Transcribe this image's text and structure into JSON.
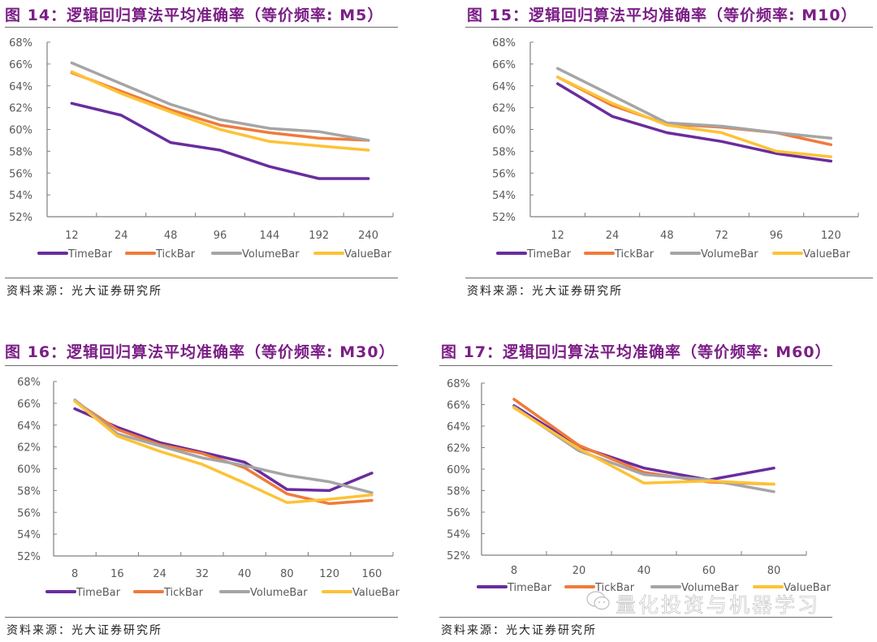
{
  "source_label": "资料来源：",
  "source_name": "光大证券研究所",
  "watermark": "量化投资与机器学习",
  "colors": {
    "TimeBar": "#6a2c9e",
    "TickBar": "#ef7b3a",
    "VolumeBar": "#a5a5a5",
    "ValueBar": "#fdc236",
    "title": "#7b1f86",
    "axis": "#7f7f7f",
    "tick_text": "#595959"
  },
  "chart_data": [
    {
      "id": "fig14",
      "type": "line",
      "title": "图 14：逻辑回归算法平均准确率（等价频率: M5）",
      "xlabel": "",
      "ylabel": "",
      "categories": [
        "12",
        "24",
        "48",
        "96",
        "144",
        "192",
        "240"
      ],
      "ylim": [
        52,
        68
      ],
      "yticks": [
        "52%",
        "54%",
        "56%",
        "58%",
        "60%",
        "62%",
        "64%",
        "66%",
        "68%"
      ],
      "grid": false,
      "legend": "bottom",
      "series": [
        {
          "name": "TimeBar",
          "values": [
            62.4,
            61.3,
            58.8,
            58.1,
            56.6,
            55.5,
            55.5
          ]
        },
        {
          "name": "TickBar",
          "values": [
            65.2,
            63.5,
            61.8,
            60.4,
            59.7,
            59.2,
            59.0
          ]
        },
        {
          "name": "VolumeBar",
          "values": [
            66.1,
            64.2,
            62.3,
            60.9,
            60.1,
            59.8,
            59.0
          ]
        },
        {
          "name": "ValueBar",
          "values": [
            65.3,
            63.3,
            61.6,
            60.0,
            58.9,
            58.5,
            58.1
          ]
        }
      ]
    },
    {
      "id": "fig15",
      "type": "line",
      "title": "图 15：逻辑回归算法平均准确率（等价频率: M10）",
      "xlabel": "",
      "ylabel": "",
      "categories": [
        "12",
        "24",
        "48",
        "72",
        "96",
        "120"
      ],
      "ylim": [
        52,
        68
      ],
      "yticks": [
        "52%",
        "54%",
        "56%",
        "58%",
        "60%",
        "62%",
        "64%",
        "66%",
        "68%"
      ],
      "grid": false,
      "legend": "bottom",
      "series": [
        {
          "name": "TimeBar",
          "values": [
            64.2,
            61.2,
            59.7,
            58.9,
            57.8,
            57.1
          ]
        },
        {
          "name": "TickBar",
          "values": [
            64.8,
            62.2,
            60.5,
            60.2,
            59.7,
            58.6
          ]
        },
        {
          "name": "VolumeBar",
          "values": [
            65.6,
            63.1,
            60.6,
            60.3,
            59.7,
            59.2
          ]
        },
        {
          "name": "ValueBar",
          "values": [
            64.8,
            62.4,
            60.4,
            59.7,
            58.0,
            57.5
          ]
        }
      ]
    },
    {
      "id": "fig16",
      "type": "line",
      "title": "图 16：逻辑回归算法平均准确率（等价频率: M30）",
      "xlabel": "",
      "ylabel": "",
      "categories": [
        "8",
        "16",
        "24",
        "32",
        "40",
        "80",
        "120",
        "160"
      ],
      "ylim": [
        52,
        68
      ],
      "yticks": [
        "52%",
        "54%",
        "56%",
        "58%",
        "60%",
        "62%",
        "64%",
        "66%",
        "68%"
      ],
      "grid": false,
      "legend": "bottom",
      "series": [
        {
          "name": "TimeBar",
          "values": [
            65.5,
            63.8,
            62.4,
            61.5,
            60.6,
            58.1,
            58.0,
            59.6
          ]
        },
        {
          "name": "TickBar",
          "values": [
            66.2,
            63.6,
            62.2,
            61.4,
            60.1,
            57.7,
            56.8,
            57.1
          ]
        },
        {
          "name": "VolumeBar",
          "values": [
            66.3,
            63.2,
            62.1,
            61.0,
            60.3,
            59.4,
            58.8,
            57.8
          ]
        },
        {
          "name": "ValueBar",
          "values": [
            66.2,
            63.0,
            61.6,
            60.4,
            58.7,
            56.9,
            57.2,
            57.6
          ]
        }
      ]
    },
    {
      "id": "fig17",
      "type": "line",
      "title": "图 17：逻辑回归算法平均准确率（等价频率: M60）",
      "xlabel": "",
      "ylabel": "",
      "categories": [
        "8",
        "20",
        "40",
        "60",
        "80"
      ],
      "ylim": [
        52,
        68
      ],
      "yticks": [
        "52%",
        "54%",
        "56%",
        "58%",
        "60%",
        "62%",
        "64%",
        "66%",
        "68%"
      ],
      "grid": false,
      "legend": "bottom",
      "series": [
        {
          "name": "TimeBar",
          "values": [
            65.9,
            62.1,
            60.1,
            59.0,
            60.1
          ]
        },
        {
          "name": "TickBar",
          "values": [
            66.5,
            62.2,
            59.7,
            58.8,
            58.6
          ]
        },
        {
          "name": "VolumeBar",
          "values": [
            65.8,
            61.7,
            59.5,
            59.0,
            57.9
          ]
        },
        {
          "name": "ValueBar",
          "values": [
            65.7,
            61.9,
            58.7,
            58.9,
            58.6
          ]
        }
      ]
    }
  ]
}
